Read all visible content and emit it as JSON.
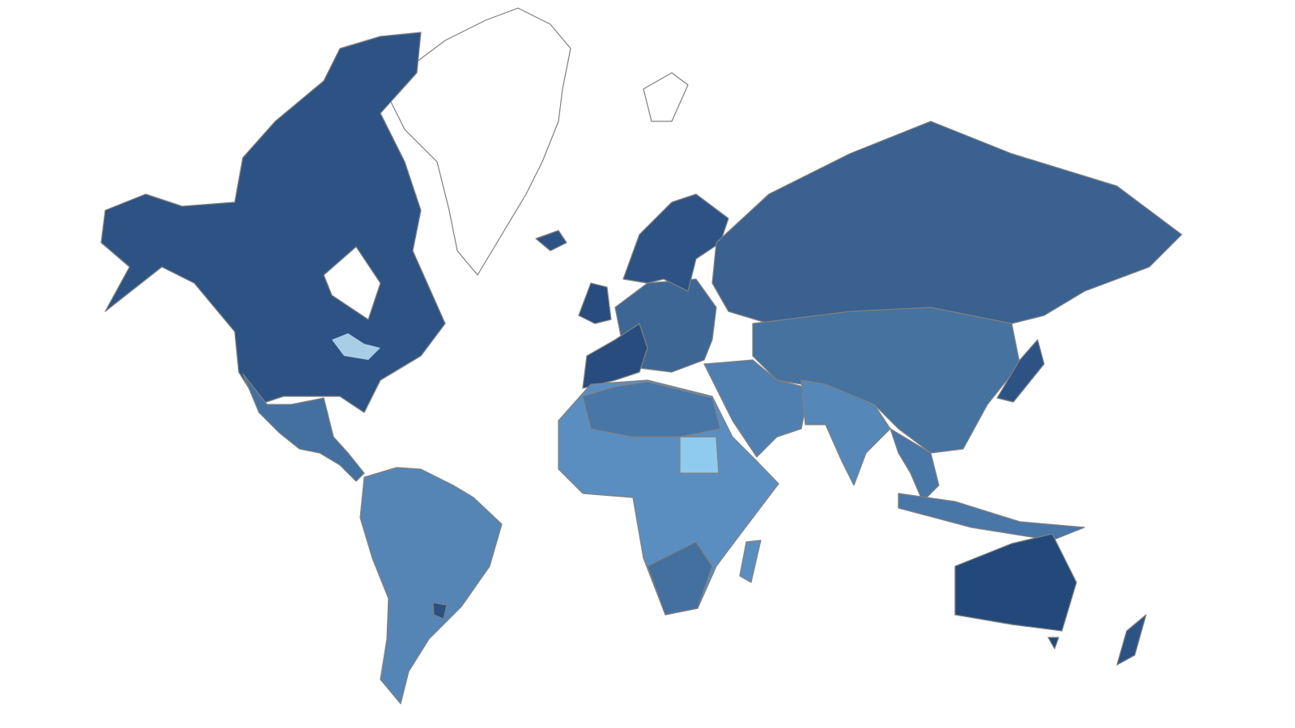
{
  "map": {
    "type": "choropleth",
    "projection": "mercator",
    "legend": "none",
    "background": "#ffffff",
    "border_color": "#808080",
    "colors": {
      "north_america": "#2d5384",
      "mexico_central_america": "#44709f",
      "south_america": "#5585b5",
      "uruguay": "#2a4f80",
      "greenland": "#ffffff",
      "europe": "#3d6694",
      "scandinavia": "#2d5384",
      "western_europe": "#274c7d",
      "russia": "#3a6190",
      "asia": "#45729f",
      "middle_east": "#4f7fb0",
      "south_asia": "#5587b8",
      "africa": "#5b8ec0",
      "north_africa": "#4876a6",
      "southern_africa": "#44709f",
      "sudan": "#8ecbee",
      "madagascar": "#5b8ec0",
      "southeast_asia": "#4876a6",
      "japan": "#2d5384",
      "australia": "#22497a",
      "new_zealand": "#2d5384",
      "lakes": "#a8cde6"
    }
  }
}
